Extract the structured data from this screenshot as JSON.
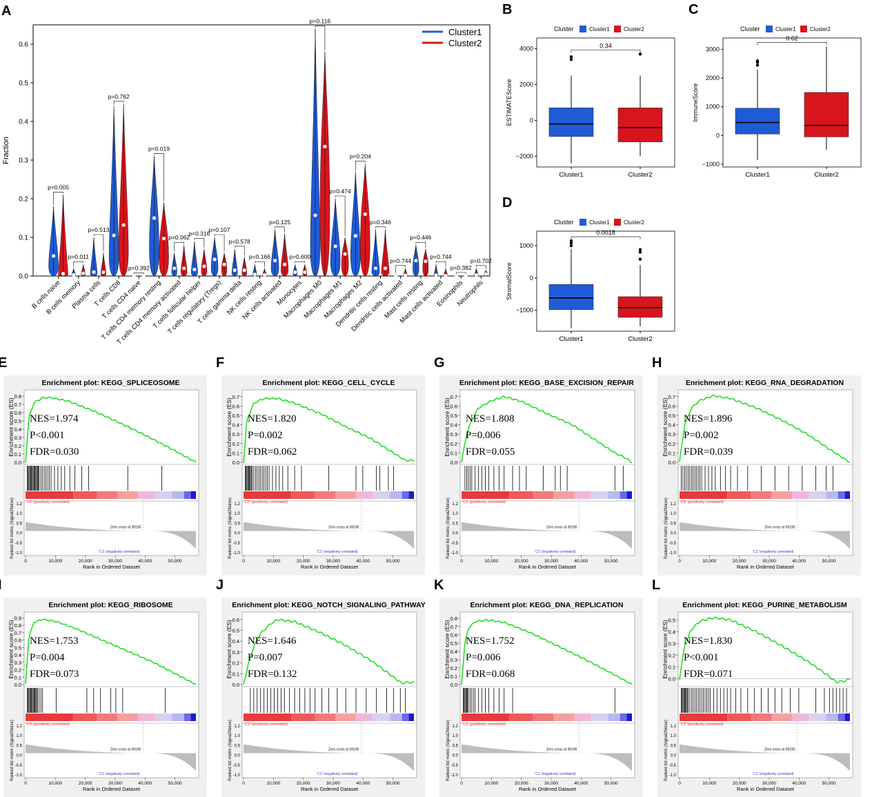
{
  "panel_letters": [
    "A",
    "B",
    "C",
    "D",
    "E",
    "F",
    "G",
    "H",
    "I",
    "J",
    "K",
    "L"
  ],
  "colors": {
    "cluster1": "#1f5bd6",
    "cluster2": "#d8141c",
    "gsea_line": "#22dd22",
    "metric_fill": "#bdbdbd"
  },
  "chart_data": [
    {
      "panel": "A",
      "type": "violin",
      "ylabel": "Fraction",
      "ylim": [
        0,
        0.65
      ],
      "yticks": [
        "0.0",
        "0.1",
        "0.2",
        "0.3",
        "0.4",
        "0.5",
        "0.6"
      ],
      "legend": [
        "Cluster1",
        "Cluster2"
      ],
      "categories": [
        "B cells naive",
        "B cells memory",
        "Plasma cells",
        "T cells CD8",
        "T cells CD4 naive",
        "T cells CD4 memory resting",
        "T cells CD4 memory activated",
        "T cells follicular helper",
        "T cells regulatory (Tregs)",
        "T cells gamma delta",
        "NK cells resting",
        "NK cells activated",
        "Monocytes",
        "Macrophages M0",
        "Macrophages M1",
        "Macrophages M2",
        "Dendritic cells resting",
        "Dendritic cells activated",
        "Mast cells resting",
        "Mast cells activated",
        "Eosinophils",
        "Neutrophils"
      ],
      "pvalues": [
        "p=0.005",
        "p=0.011",
        "p=0.513",
        "p=0.762",
        "p=0.392",
        "p=0.019",
        "p=0.062",
        "p=0.316",
        "p=0.107",
        "p=0.578",
        "p=0.166",
        "p=0.125",
        "p=0.600",
        "p=0.116",
        "p=0.474",
        "p=0.204",
        "p=0.346",
        "p=0.744",
        "p=0.446",
        "p=0.744",
        "p=0.382",
        "p=0.702"
      ],
      "series": [
        {
          "name": "Cluster1",
          "max": [
            0.18,
            0.02,
            0.1,
            0.44,
            0.001,
            0.31,
            0.06,
            0.09,
            0.1,
            0.07,
            0.03,
            0.12,
            0.03,
            0.64,
            0.2,
            0.27,
            0.12,
            0.004,
            0.08,
            0.03,
            0.001,
            0.02
          ],
          "median": [
            0.052,
            0.003,
            0.01,
            0.105,
            0.0,
            0.15,
            0.02,
            0.017,
            0.043,
            0.015,
            0.004,
            0.04,
            0.01,
            0.157,
            0.077,
            0.104,
            0.02,
            0.0,
            0.04,
            0.002,
            0.0,
            0.003
          ]
        },
        {
          "name": "Cluster2",
          "max": [
            0.21,
            0.03,
            0.06,
            0.445,
            0.001,
            0.19,
            0.08,
            0.07,
            0.06,
            0.05,
            0.02,
            0.11,
            0.03,
            0.58,
            0.1,
            0.29,
            0.12,
            0.02,
            0.07,
            0.02,
            0.002,
            0.015
          ],
          "median": [
            0.006,
            0.007,
            0.01,
            0.132,
            0.0,
            0.097,
            0.02,
            0.025,
            0.03,
            0.015,
            0.003,
            0.03,
            0.01,
            0.335,
            0.057,
            0.16,
            0.02,
            0.002,
            0.038,
            0.001,
            0.0,
            0.005
          ]
        }
      ]
    },
    {
      "panel": "B",
      "type": "boxplot",
      "ylabel": "ESTIMATEScore",
      "ylim": [
        -2600,
        4600
      ],
      "yticks": [
        -2000,
        0,
        2000,
        4000
      ],
      "legend_title": "Cluster",
      "legend": [
        "Cluster1",
        "Cluster2"
      ],
      "categories": [
        "Cluster1",
        "Cluster2"
      ],
      "pvalue": "0.34",
      "boxes": [
        {
          "min": -2400,
          "q1": -900,
          "median": -200,
          "q3": 700,
          "max": 2500,
          "outliers": [
            3400,
            3550
          ]
        },
        {
          "min": -2000,
          "q1": -1200,
          "median": -400,
          "q3": 700,
          "max": 2500,
          "outliers": [
            3700
          ]
        }
      ]
    },
    {
      "panel": "C",
      "type": "boxplot",
      "ylabel": "ImmuneScore",
      "ylim": [
        -1100,
        3400
      ],
      "yticks": [
        -1000,
        0,
        1000,
        2000,
        3000
      ],
      "legend_title": "Cluster",
      "legend": [
        "Cluster1",
        "Cluster2"
      ],
      "categories": [
        "Cluster1",
        "Cluster2"
      ],
      "pvalue": "0.62",
      "boxes": [
        {
          "min": -850,
          "q1": 50,
          "median": 450,
          "q3": 950,
          "max": 2300,
          "outliers": [
            2450,
            2550,
            2600
          ]
        },
        {
          "min": -500,
          "q1": -50,
          "median": 350,
          "q3": 1500,
          "max": 3100,
          "outliers": []
        }
      ]
    },
    {
      "panel": "D",
      "type": "boxplot",
      "ylabel": "StromalScore",
      "ylim": [
        -1650,
        1450
      ],
      "yticks": [
        -1000,
        0,
        1000
      ],
      "legend_title": "Cluster",
      "legend": [
        "Cluster1",
        "Cluster2"
      ],
      "categories": [
        "Cluster1",
        "Cluster2"
      ],
      "pvalue": "0.0018",
      "boxes": [
        {
          "min": -1550,
          "q1": -980,
          "median": -620,
          "q3": -200,
          "max": 900,
          "outliers": [
            1000,
            1080,
            1150
          ]
        },
        {
          "min": -1500,
          "q1": -1220,
          "median": -920,
          "q3": -580,
          "max": 400,
          "outliers": [
            580,
            800,
            880
          ]
        }
      ]
    },
    {
      "panel": "E",
      "type": "gsea",
      "title": "Enrichment plot: KEGG_SPLICEOSOME",
      "ylim": [
        0,
        0.85
      ],
      "yticks": [
        "0.0",
        "0.1",
        "0.2",
        "0.3",
        "0.4",
        "0.5",
        "0.6",
        "0.7",
        "0.8"
      ],
      "stats": [
        "NES=1.974",
        "P<0.001",
        "FDR=0.030"
      ],
      "es_curve": [
        [
          0,
          0
        ],
        [
          0.02,
          0.55
        ],
        [
          0.05,
          0.72
        ],
        [
          0.1,
          0.78
        ],
        [
          0.15,
          0.78
        ],
        [
          0.25,
          0.74
        ],
        [
          0.4,
          0.62
        ],
        [
          0.55,
          0.48
        ],
        [
          0.7,
          0.33
        ],
        [
          0.85,
          0.17
        ],
        [
          1,
          0
        ]
      ],
      "hits": [
        0.01,
        0.015,
        0.02,
        0.025,
        0.03,
        0.035,
        0.04,
        0.045,
        0.05,
        0.055,
        0.06,
        0.065,
        0.07,
        0.075,
        0.08,
        0.09,
        0.1,
        0.11,
        0.12,
        0.13,
        0.14,
        0.15,
        0.17,
        0.19,
        0.21,
        0.23,
        0.26,
        0.29,
        0.33,
        0.37,
        0.6,
        0.8
      ]
    },
    {
      "panel": "F",
      "type": "gsea",
      "title": "Enrichment plot: KEGG_CELL_CYCLE",
      "ylim": [
        0,
        0.75
      ],
      "yticks": [
        "0.0",
        "0.1",
        "0.2",
        "0.3",
        "0.4",
        "0.5",
        "0.6",
        "0.7"
      ],
      "stats": [
        "NES=1.820",
        "P=0.002",
        "FDR=0.062"
      ],
      "es_curve": [
        [
          0,
          0
        ],
        [
          0.02,
          0.45
        ],
        [
          0.06,
          0.63
        ],
        [
          0.12,
          0.68
        ],
        [
          0.2,
          0.68
        ],
        [
          0.3,
          0.63
        ],
        [
          0.45,
          0.52
        ],
        [
          0.6,
          0.38
        ],
        [
          0.75,
          0.25
        ],
        [
          0.88,
          0.1
        ],
        [
          0.95,
          0.02
        ],
        [
          1,
          0.02
        ]
      ],
      "hits": [
        0.01,
        0.015,
        0.02,
        0.025,
        0.03,
        0.035,
        0.04,
        0.045,
        0.05,
        0.06,
        0.07,
        0.08,
        0.09,
        0.1,
        0.11,
        0.12,
        0.13,
        0.14,
        0.15,
        0.17,
        0.19,
        0.21,
        0.23,
        0.26,
        0.3,
        0.34,
        0.5,
        0.66,
        0.7,
        0.78,
        0.8,
        0.85,
        0.88
      ]
    },
    {
      "panel": "G",
      "type": "gsea",
      "title": "Enrichment plot: KEGG_BASE_EXCISION_REPAIR",
      "ylim": [
        0,
        0.75
      ],
      "yticks": [
        "0.0",
        "0.1",
        "0.2",
        "0.3",
        "0.4",
        "0.5",
        "0.6",
        "0.7"
      ],
      "stats": [
        "NES=1.808",
        "P=0.006",
        "FDR=0.055"
      ],
      "es_curve": [
        [
          0,
          0
        ],
        [
          0.03,
          0.3
        ],
        [
          0.06,
          0.45
        ],
        [
          0.1,
          0.58
        ],
        [
          0.18,
          0.66
        ],
        [
          0.25,
          0.7
        ],
        [
          0.35,
          0.65
        ],
        [
          0.5,
          0.52
        ],
        [
          0.65,
          0.4
        ],
        [
          0.8,
          0.22
        ],
        [
          0.9,
          0.1
        ],
        [
          0.95,
          0.06
        ],
        [
          1,
          0
        ]
      ],
      "hits": [
        0.02,
        0.03,
        0.04,
        0.05,
        0.06,
        0.08,
        0.1,
        0.12,
        0.14,
        0.16,
        0.19,
        0.22,
        0.25,
        0.3,
        0.34,
        0.38,
        0.48,
        0.55,
        0.58,
        0.62,
        0.9,
        0.95
      ]
    },
    {
      "panel": "H",
      "type": "gsea",
      "title": "Enrichment plot: KEGG_RNA_DEGRADATION",
      "ylim": [
        0,
        0.75
      ],
      "yticks": [
        "0.0",
        "0.1",
        "0.2",
        "0.3",
        "0.4",
        "0.5",
        "0.6",
        "0.7"
      ],
      "stats": [
        "NES=1.896",
        "P=0.002",
        "FDR=0.039"
      ],
      "es_curve": [
        [
          0,
          0
        ],
        [
          0.03,
          0.4
        ],
        [
          0.07,
          0.58
        ],
        [
          0.12,
          0.66
        ],
        [
          0.2,
          0.71
        ],
        [
          0.3,
          0.68
        ],
        [
          0.45,
          0.58
        ],
        [
          0.6,
          0.45
        ],
        [
          0.75,
          0.3
        ],
        [
          0.88,
          0.14
        ],
        [
          1,
          0
        ]
      ],
      "hits": [
        0.01,
        0.02,
        0.03,
        0.04,
        0.05,
        0.06,
        0.07,
        0.08,
        0.09,
        0.1,
        0.11,
        0.12,
        0.13,
        0.15,
        0.17,
        0.19,
        0.21,
        0.24,
        0.27,
        0.3,
        0.34,
        0.4,
        0.48,
        0.56,
        0.64,
        0.72,
        0.8,
        0.86,
        0.9
      ]
    },
    {
      "panel": "I",
      "type": "gsea",
      "title": "Enrichment plot: KEGG_RIBOSOME",
      "ylim": [
        0,
        0.95
      ],
      "yticks": [
        "0.0",
        "0.1",
        "0.2",
        "0.3",
        "0.4",
        "0.5",
        "0.6",
        "0.7",
        "0.8",
        "0.9"
      ],
      "stats": [
        "NES=1.753",
        "P=0.004",
        "FDR=0.073"
      ],
      "es_curve": [
        [
          0,
          0
        ],
        [
          0.02,
          0.65
        ],
        [
          0.05,
          0.84
        ],
        [
          0.1,
          0.88
        ],
        [
          0.18,
          0.85
        ],
        [
          0.3,
          0.75
        ],
        [
          0.45,
          0.6
        ],
        [
          0.6,
          0.45
        ],
        [
          0.75,
          0.3
        ],
        [
          0.9,
          0.12
        ],
        [
          1,
          0
        ]
      ],
      "hits": [
        0.01,
        0.015,
        0.02,
        0.025,
        0.03,
        0.035,
        0.04,
        0.045,
        0.05,
        0.055,
        0.06,
        0.065,
        0.07,
        0.08,
        0.09,
        0.1,
        0.18,
        0.36,
        0.4,
        0.44,
        0.5,
        0.53,
        0.57,
        0.82
      ]
    },
    {
      "panel": "J",
      "type": "gsea",
      "title": "Enrichment plot: KEGG_NOTCH_SIGNALING_PATHWAY",
      "ylim": [
        0,
        0.65
      ],
      "yticks": [
        "0.0",
        "0.1",
        "0.2",
        "0.3",
        "0.4",
        "0.5",
        "0.6"
      ],
      "stats": [
        "NES=1.646",
        "P=0.007",
        "FDR=0.132"
      ],
      "es_curve": [
        [
          0,
          0
        ],
        [
          0.03,
          0.2
        ],
        [
          0.06,
          0.35
        ],
        [
          0.1,
          0.47
        ],
        [
          0.15,
          0.55
        ],
        [
          0.2,
          0.6
        ],
        [
          0.3,
          0.58
        ],
        [
          0.45,
          0.48
        ],
        [
          0.6,
          0.36
        ],
        [
          0.75,
          0.22
        ],
        [
          0.87,
          0.08
        ],
        [
          0.93,
          0.01
        ],
        [
          0.96,
          0.02
        ],
        [
          1,
          0.02
        ]
      ],
      "hits": [
        0.04,
        0.06,
        0.08,
        0.1,
        0.12,
        0.14,
        0.16,
        0.18,
        0.2,
        0.22,
        0.24,
        0.27,
        0.3,
        0.33,
        0.36,
        0.39,
        0.42,
        0.46,
        0.5,
        0.55,
        0.6,
        0.66,
        0.72,
        0.78,
        0.84,
        0.88,
        0.92,
        0.95
      ]
    },
    {
      "panel": "K",
      "type": "gsea",
      "title": "Enrichment plot: KEGG_DNA_REPLICATION",
      "ylim": [
        0,
        0.85
      ],
      "yticks": [
        "0.0",
        "0.1",
        "0.2",
        "0.3",
        "0.4",
        "0.5",
        "0.6",
        "0.7",
        "0.8"
      ],
      "stats": [
        "NES=1.752",
        "P=0.006",
        "FDR=0.068"
      ],
      "es_curve": [
        [
          0,
          0
        ],
        [
          0.02,
          0.5
        ],
        [
          0.04,
          0.68
        ],
        [
          0.08,
          0.76
        ],
        [
          0.15,
          0.78
        ],
        [
          0.25,
          0.75
        ],
        [
          0.4,
          0.63
        ],
        [
          0.55,
          0.48
        ],
        [
          0.7,
          0.33
        ],
        [
          0.85,
          0.17
        ],
        [
          1,
          0
        ]
      ],
      "hits": [
        0.01,
        0.015,
        0.02,
        0.025,
        0.03,
        0.035,
        0.04,
        0.05,
        0.06,
        0.07,
        0.08,
        0.1,
        0.12,
        0.14,
        0.16,
        0.19,
        0.22,
        0.25,
        0.3,
        0.9
      ]
    },
    {
      "panel": "L",
      "type": "gsea",
      "title": "Enrichment plot: KEGG_PURINE_METABOLISM",
      "ylim": [
        -0.05,
        0.55
      ],
      "yticks": [
        "0.0",
        "0.1",
        "0.2",
        "0.3",
        "0.4",
        "0.5"
      ],
      "stats": [
        "NES=1.830",
        "P<0.001",
        "FDR=0.071"
      ],
      "es_curve": [
        [
          0,
          0.0
        ],
        [
          0.03,
          0.28
        ],
        [
          0.07,
          0.42
        ],
        [
          0.12,
          0.49
        ],
        [
          0.2,
          0.52
        ],
        [
          0.3,
          0.5
        ],
        [
          0.45,
          0.4
        ],
        [
          0.6,
          0.28
        ],
        [
          0.75,
          0.15
        ],
        [
          0.85,
          0.05
        ],
        [
          0.92,
          -0.03
        ],
        [
          0.97,
          -0.02
        ],
        [
          1,
          0.0
        ]
      ],
      "hits": [
        0.01,
        0.015,
        0.02,
        0.025,
        0.03,
        0.035,
        0.04,
        0.045,
        0.05,
        0.06,
        0.07,
        0.08,
        0.09,
        0.1,
        0.11,
        0.12,
        0.13,
        0.14,
        0.15,
        0.16,
        0.17,
        0.18,
        0.2,
        0.22,
        0.24,
        0.26,
        0.28,
        0.3,
        0.33,
        0.36,
        0.4,
        0.44,
        0.48,
        0.52,
        0.56,
        0.6,
        0.65,
        0.7,
        0.8,
        0.85,
        0.88,
        0.9,
        0.92,
        0.94,
        0.96,
        0.98
      ]
    }
  ],
  "gsea_common": {
    "ylabel_es": "Enrichment score (ES)",
    "ylabel_metric": "Ranked list metric (Signal2Noise)",
    "xlabel": "Rank in Ordered Dataset",
    "xticks": [
      "0",
      "10,000",
      "20,000",
      "30,000",
      "40,000",
      "50,000"
    ],
    "metric_yticks": [
      "1.2",
      "1.0",
      "0.5",
      "0.0",
      "-0.5",
      "-1.0"
    ],
    "pos_label": "'C2' (positively correlated)",
    "neg_label": "'C1' (negatively correlated)",
    "zero_cross": "Zero cross at 39190"
  }
}
